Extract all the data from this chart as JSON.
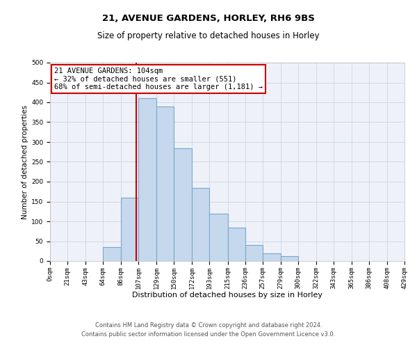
{
  "title": "21, AVENUE GARDENS, HORLEY, RH6 9BS",
  "subtitle": "Size of property relative to detached houses in Horley",
  "xlabel": "Distribution of detached houses by size in Horley",
  "ylabel": "Number of detached properties",
  "bin_edges": [
    0,
    21,
    43,
    64,
    86,
    107,
    129,
    150,
    172,
    193,
    215,
    236,
    257,
    279,
    300,
    322,
    343,
    365,
    386,
    408,
    429
  ],
  "bin_counts": [
    0,
    0,
    0,
    35,
    160,
    410,
    390,
    285,
    185,
    120,
    85,
    40,
    20,
    12,
    0,
    0,
    0,
    0,
    0,
    0
  ],
  "bar_color": "#c5d8ed",
  "bar_edge_color": "#7ba8c8",
  "property_value": 104,
  "vline_color": "#cc0000",
  "annotation_line1": "21 AVENUE GARDENS: 104sqm",
  "annotation_line2": "← 32% of detached houses are smaller (551)",
  "annotation_line3": "68% of semi-detached houses are larger (1,181) →",
  "annotation_box_color": "#ffffff",
  "annotation_box_edge_color": "#cc0000",
  "ylim": [
    0,
    500
  ],
  "yticks": [
    0,
    50,
    100,
    150,
    200,
    250,
    300,
    350,
    400,
    450,
    500
  ],
  "grid_color": "#d0d8e8",
  "background_color": "#eef2f8",
  "footer_line1": "Contains HM Land Registry data © Crown copyright and database right 2024.",
  "footer_line2": "Contains public sector information licensed under the Open Government Licence v3.0.",
  "title_fontsize": 9.5,
  "subtitle_fontsize": 8.5,
  "tick_label_size": 6.5,
  "xlabel_fontsize": 8,
  "ylabel_fontsize": 7.5,
  "annotation_fontsize": 7.5,
  "footer_fontsize": 6
}
